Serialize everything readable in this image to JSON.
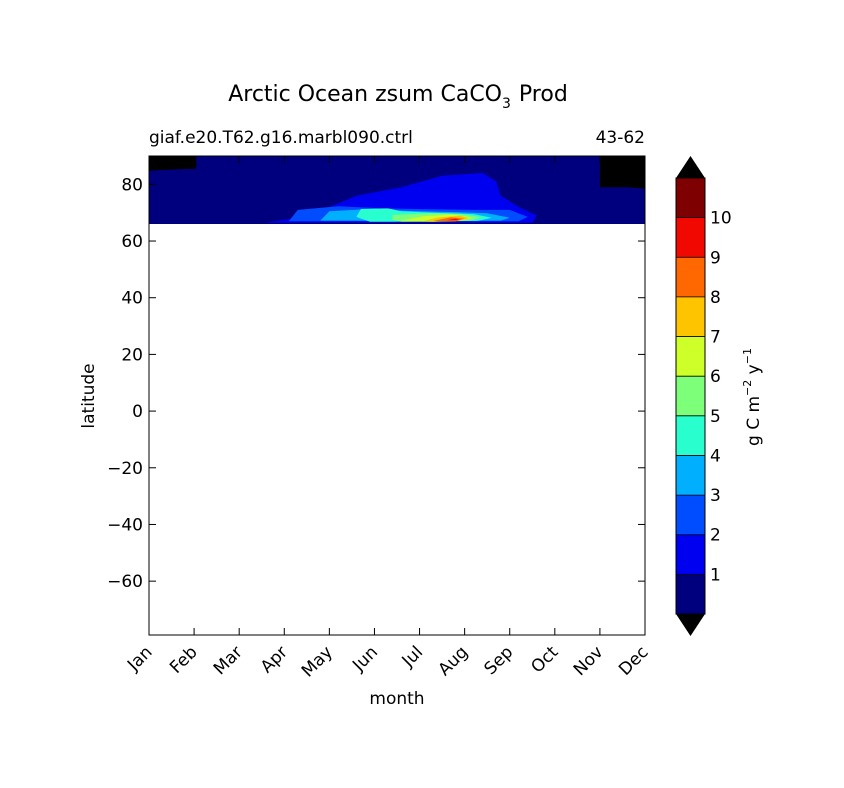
{
  "chart_data": {
    "type": "heatmap",
    "title": "Arctic Ocean zsum CaCO",
    "title_subscript": "3",
    "title_suffix": "Prod",
    "subtitle_left": "giaf.e20.T62.g16.marbl090.ctrl",
    "subtitle_right": "43-62",
    "xlabel": "month",
    "ylabel": "latitude",
    "x_ticks": [
      "Jan",
      "Feb",
      "Mar",
      "Apr",
      "May",
      "Jun",
      "Jul",
      "Aug",
      "Sep",
      "Oct",
      "Nov",
      "Dec"
    ],
    "xlim": [
      0,
      11
    ],
    "ylim": [
      -79,
      90
    ],
    "y_ticks": [
      80,
      60,
      40,
      20,
      0,
      -20,
      -40,
      -60
    ],
    "y_tick_labels": [
      "80",
      "60",
      "40",
      "20",
      "0",
      "−20",
      "−40",
      "−60"
    ],
    "data_lat_range": [
      66,
      90
    ],
    "colorbar": {
      "label_main": "g C m",
      "label_exp1": "−2",
      "label_mid": " y",
      "label_exp2": "−1",
      "levels": [
        0,
        1,
        2,
        3,
        4,
        5,
        6,
        7,
        8,
        9,
        10,
        11
      ],
      "tick_values": [
        1,
        2,
        3,
        4,
        5,
        6,
        7,
        8,
        9,
        10
      ],
      "tick_labels": [
        "1",
        "2",
        "3",
        "4",
        "5",
        "6",
        "7",
        "8",
        "9",
        "10"
      ],
      "colors": [
        "#00007f",
        "#0000f1",
        "#004cff",
        "#00b0ff",
        "#29ffce",
        "#7dff7a",
        "#ceff29",
        "#ffc400",
        "#ff6800",
        "#f10800",
        "#7f0000"
      ],
      "under_color": "#000000",
      "over_color": "#000000"
    },
    "regions": [
      {
        "name": "base",
        "level": 0,
        "points": [
          [
            0,
            90
          ],
          [
            11,
            90
          ],
          [
            11,
            66
          ],
          [
            0,
            66
          ]
        ]
      },
      {
        "name": "blue1",
        "level": 1,
        "points": [
          [
            2.6,
            66.5
          ],
          [
            3.2,
            68
          ],
          [
            4.0,
            72
          ],
          [
            4.6,
            76
          ],
          [
            5.6,
            79
          ],
          [
            6.5,
            83
          ],
          [
            7.4,
            84
          ],
          [
            7.7,
            81
          ],
          [
            7.8,
            76
          ],
          [
            8.2,
            72
          ],
          [
            8.6,
            69
          ],
          [
            8.5,
            66.5
          ]
        ]
      },
      {
        "name": "blue2",
        "level": 2,
        "points": [
          [
            3.1,
            67
          ],
          [
            3.3,
            71
          ],
          [
            4.2,
            72.3
          ],
          [
            5.2,
            71.5
          ],
          [
            6.3,
            71.2
          ],
          [
            7.3,
            71
          ],
          [
            8.0,
            71
          ],
          [
            8.4,
            68.5
          ],
          [
            8.2,
            67
          ]
        ]
      },
      {
        "name": "blue3",
        "level": 3,
        "points": [
          [
            3.8,
            67.2
          ],
          [
            4.0,
            70.5
          ],
          [
            4.8,
            71.2
          ],
          [
            5.8,
            70.6
          ],
          [
            6.8,
            70.2
          ],
          [
            7.5,
            69.8
          ],
          [
            8.0,
            68.2
          ],
          [
            7.8,
            67.2
          ]
        ]
      },
      {
        "name": "cyan",
        "level": 4,
        "points": [
          [
            4.6,
            68.5
          ],
          [
            4.7,
            71.3
          ],
          [
            5.3,
            71.5
          ],
          [
            5.6,
            70.5
          ],
          [
            6.3,
            70
          ],
          [
            7.2,
            69.5
          ],
          [
            7.6,
            68.2
          ],
          [
            7.3,
            67.1
          ],
          [
            5.4,
            66.8
          ],
          [
            4.9,
            66.8
          ]
        ]
      },
      {
        "name": "green",
        "level": 5,
        "points": [
          [
            5.4,
            67.5
          ],
          [
            5.4,
            69.2
          ],
          [
            6.2,
            69.8
          ],
          [
            6.9,
            69.6
          ],
          [
            7.4,
            68.3
          ],
          [
            7.1,
            67.2
          ],
          [
            6.2,
            66.8
          ],
          [
            5.6,
            66.8
          ]
        ]
      },
      {
        "name": "lime",
        "level": 6,
        "points": [
          [
            5.6,
            67.2
          ],
          [
            6.1,
            68.8
          ],
          [
            6.7,
            69.4
          ],
          [
            7.2,
            68.2
          ],
          [
            6.9,
            67.1
          ],
          [
            6.3,
            66.8
          ]
        ]
      },
      {
        "name": "yellow",
        "level": 7,
        "points": [
          [
            6.1,
            67.1
          ],
          [
            6.4,
            68.3
          ],
          [
            6.9,
            68.9
          ],
          [
            7.1,
            68.0
          ],
          [
            6.8,
            67.0
          ]
        ]
      },
      {
        "name": "orange",
        "level": 8,
        "points": [
          [
            6.3,
            67.1
          ],
          [
            6.7,
            68.4
          ],
          [
            7.0,
            67.9
          ],
          [
            6.8,
            67.0
          ]
        ]
      },
      {
        "name": "red",
        "level": 9,
        "points": [
          [
            6.6,
            67.3
          ],
          [
            6.8,
            67.9
          ],
          [
            6.9,
            67.4
          ]
        ]
      },
      {
        "name": "under-topleft",
        "level": -1,
        "points": [
          [
            0,
            90
          ],
          [
            1.05,
            90
          ],
          [
            1.05,
            85.5
          ],
          [
            0.45,
            85.2
          ],
          [
            0,
            84.8
          ]
        ]
      },
      {
        "name": "under-topright",
        "level": -1,
        "points": [
          [
            10,
            90
          ],
          [
            11,
            90
          ],
          [
            11,
            78.5
          ],
          [
            10.6,
            79
          ],
          [
            10,
            79
          ]
        ]
      }
    ]
  }
}
